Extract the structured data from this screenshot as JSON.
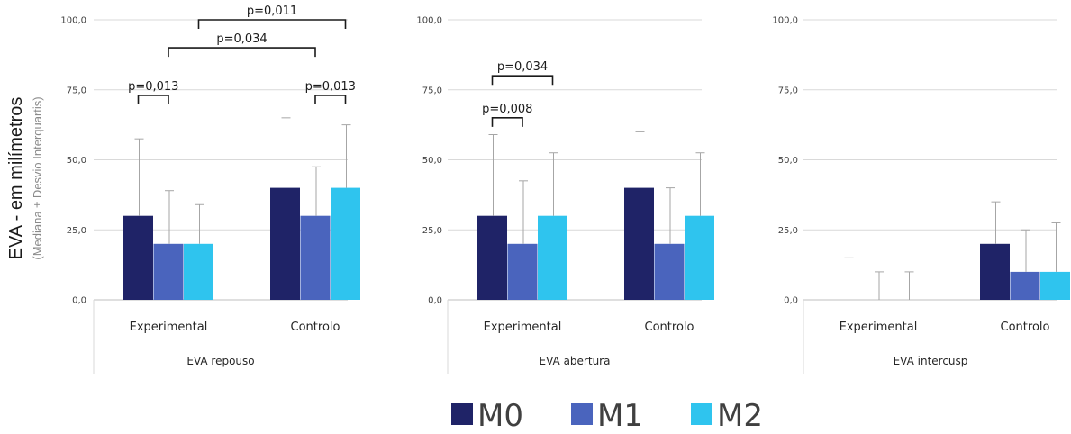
{
  "ylabel": "EVA - em milímetros",
  "ylabel_sub": "(Mediana ± Desvio Interquartis)",
  "legend": [
    {
      "name": "M0",
      "color": "#1f2367"
    },
    {
      "name": "M1",
      "color": "#4a64bd"
    },
    {
      "name": "M2",
      "color": "#2fc4ee"
    }
  ],
  "chart_data": [
    {
      "type": "bar",
      "title": "EVA repouso",
      "categories": [
        "Experimental",
        "Controlo"
      ],
      "ylim": [
        0,
        100
      ],
      "yticks": [
        "0,0",
        "25,0",
        "50,0",
        "75,0",
        "100,0"
      ],
      "grid": true,
      "series": [
        {
          "name": "M0",
          "values": [
            30,
            40
          ],
          "errors": [
            27.5,
            25
          ]
        },
        {
          "name": "M1",
          "values": [
            20,
            30
          ],
          "errors": [
            19,
            17.5
          ]
        },
        {
          "name": "M2",
          "values": [
            20,
            40
          ],
          "errors": [
            14,
            22.5
          ]
        }
      ],
      "annotations": [
        {
          "text": "p=0,013",
          "from": [
            0,
            0
          ],
          "to": [
            0,
            1
          ],
          "level": 73
        },
        {
          "text": "p=0,013",
          "from": [
            1,
            1
          ],
          "to": [
            1,
            2
          ],
          "level": 73
        },
        {
          "text": "p=0,034",
          "from": [
            0,
            1
          ],
          "to": [
            1,
            1
          ],
          "level": 90
        },
        {
          "text": "p=0,011",
          "from": [
            0,
            2
          ],
          "to": [
            1,
            2
          ],
          "level": 100
        }
      ]
    },
    {
      "type": "bar",
      "title": "EVA abertura",
      "categories": [
        "Experimental",
        "Controlo"
      ],
      "ylim": [
        0,
        100
      ],
      "yticks": [
        "0,0",
        "25,0",
        "50,0",
        "75,0",
        "100,0"
      ],
      "grid": true,
      "series": [
        {
          "name": "M0",
          "values": [
            30,
            40
          ],
          "errors": [
            29,
            20
          ]
        },
        {
          "name": "M1",
          "values": [
            20,
            20
          ],
          "errors": [
            22.5,
            20
          ]
        },
        {
          "name": "M2",
          "values": [
            30,
            30
          ],
          "errors": [
            22.5,
            22.5
          ]
        }
      ],
      "annotations": [
        {
          "text": "p=0,008",
          "from": [
            0,
            0
          ],
          "to": [
            0,
            1
          ],
          "level": 65
        },
        {
          "text": "p=0,034",
          "from": [
            0,
            0
          ],
          "to": [
            0,
            2
          ],
          "level": 80
        }
      ]
    },
    {
      "type": "bar",
      "title": "EVA intercusp",
      "categories": [
        "Experimental",
        "Controlo"
      ],
      "ylim": [
        0,
        100
      ],
      "yticks": [
        "0,0",
        "25,0",
        "50,0",
        "75,0",
        "100,0"
      ],
      "grid": true,
      "series": [
        {
          "name": "M0",
          "values": [
            0,
            20
          ],
          "errors": [
            15,
            15
          ]
        },
        {
          "name": "M1",
          "values": [
            0,
            10
          ],
          "errors": [
            10,
            15
          ]
        },
        {
          "name": "M2",
          "values": [
            0,
            10
          ],
          "errors": [
            10,
            17.5
          ]
        }
      ],
      "annotations": []
    }
  ]
}
